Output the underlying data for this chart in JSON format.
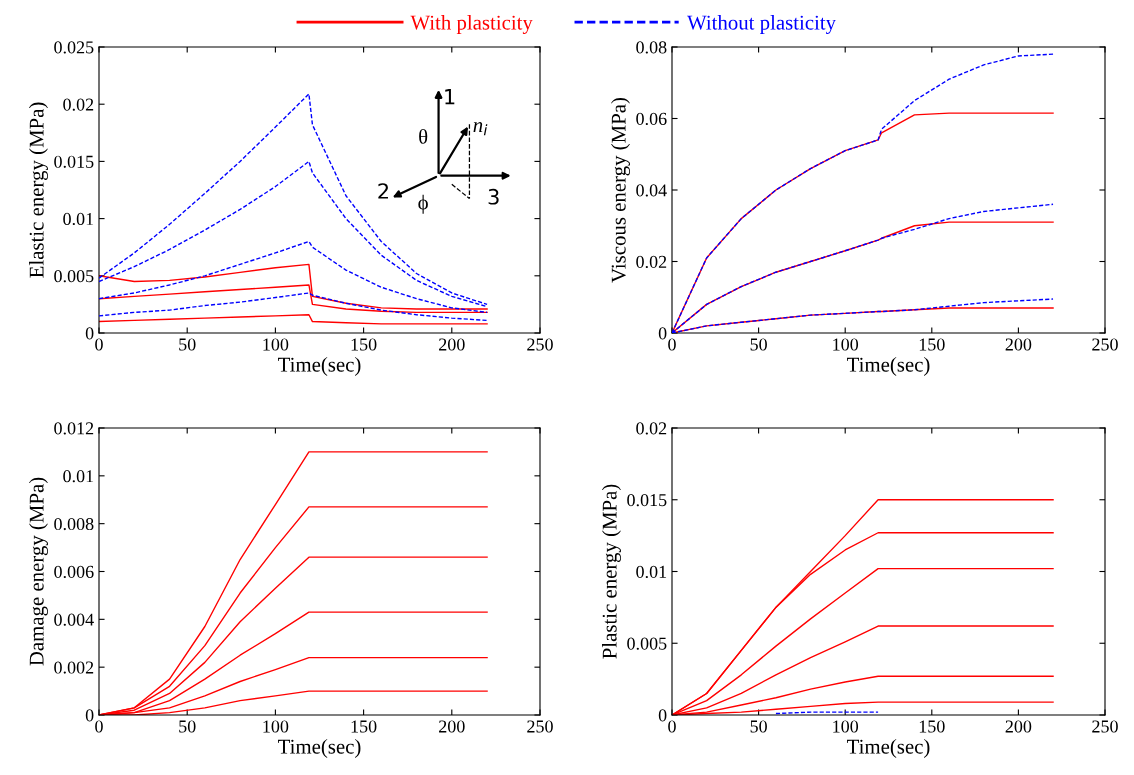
{
  "chart_data": [
    {
      "type": "line",
      "xlabel": "Time(sec)",
      "ylabel": "Elastic energy (MPa)",
      "legend": "top",
      "xlim": [
        0,
        250
      ],
      "xticks": [
        0,
        50,
        100,
        150,
        200,
        250
      ],
      "ylim": [
        0,
        0.025
      ],
      "yticks": [
        0,
        0.005,
        0.01,
        0.015,
        0.02,
        0.025
      ],
      "annotations": [
        "1",
        "2",
        "3",
        "θ",
        "ϕ",
        "n$_{i}$"
      ],
      "x": [
        0,
        20,
        40,
        60,
        80,
        100,
        119,
        121,
        140,
        160,
        180,
        200,
        220
      ],
      "series": [
        {
          "name": "With plasticity",
          "color": "#ff0000",
          "line_style": "solid",
          "values": [
            0.005,
            0.0045,
            0.0046,
            0.0049,
            0.0053,
            0.0057,
            0.006,
            0.0032,
            0.0026,
            0.0022,
            0.0021,
            0.0021,
            0.0021
          ]
        },
        {
          "color": "#ff0000",
          "line_style": "solid",
          "values": [
            0.003,
            0.0032,
            0.0034,
            0.0036,
            0.0038,
            0.004,
            0.0042,
            0.0025,
            0.0021,
            0.0019,
            0.0018,
            0.0018,
            0.0018
          ]
        },
        {
          "color": "#ff0000",
          "line_style": "solid",
          "values": [
            0.001,
            0.0011,
            0.0012,
            0.0013,
            0.0014,
            0.0015,
            0.0016,
            0.001,
            0.0009,
            0.0008,
            0.0008,
            0.0008,
            0.0008
          ]
        },
        {
          "name": "Without plasticity",
          "color": "#0000ff",
          "line_style": "dashed",
          "values": [
            0.0048,
            0.007,
            0.0095,
            0.0122,
            0.015,
            0.018,
            0.0209,
            0.0182,
            0.012,
            0.008,
            0.0052,
            0.0035,
            0.0025
          ]
        },
        {
          "color": "#0000ff",
          "line_style": "dashed",
          "values": [
            0.0045,
            0.0058,
            0.0073,
            0.009,
            0.0108,
            0.0128,
            0.015,
            0.014,
            0.01,
            0.0068,
            0.0046,
            0.0032,
            0.0023
          ]
        },
        {
          "color": "#0000ff",
          "line_style": "dashed",
          "values": [
            0.003,
            0.0035,
            0.0042,
            0.005,
            0.006,
            0.007,
            0.008,
            0.0075,
            0.0055,
            0.004,
            0.003,
            0.0022,
            0.0018
          ]
        },
        {
          "color": "#0000ff",
          "line_style": "dashed",
          "values": [
            0.0015,
            0.0018,
            0.002,
            0.0024,
            0.0027,
            0.0031,
            0.0035,
            0.0033,
            0.0026,
            0.002,
            0.0016,
            0.0013,
            0.0011
          ]
        }
      ]
    },
    {
      "type": "line",
      "xlabel": "Time(sec)",
      "ylabel": "Viscous energy (MPa)",
      "xlim": [
        0,
        250
      ],
      "xticks": [
        0,
        50,
        100,
        150,
        200,
        250
      ],
      "ylim": [
        0,
        0.08
      ],
      "yticks": [
        0,
        0.02,
        0.04,
        0.06,
        0.08
      ],
      "x": [
        0,
        20,
        40,
        60,
        80,
        100,
        119,
        121,
        140,
        160,
        180,
        200,
        220
      ],
      "series": [
        {
          "color": "#0000ff",
          "line_style": "dashed",
          "values": [
            0,
            0.021,
            0.032,
            0.04,
            0.046,
            0.051,
            0.054,
            0.057,
            0.065,
            0.071,
            0.075,
            0.0775,
            0.078
          ]
        },
        {
          "color": "#0000ff",
          "line_style": "dashed",
          "values": [
            0,
            0.008,
            0.013,
            0.017,
            0.02,
            0.023,
            0.026,
            0.0265,
            0.029,
            0.032,
            0.034,
            0.035,
            0.036
          ]
        },
        {
          "color": "#0000ff",
          "line_style": "dashed",
          "values": [
            0,
            0.002,
            0.003,
            0.004,
            0.005,
            0.0055,
            0.006,
            0.006,
            0.0065,
            0.0075,
            0.0085,
            0.009,
            0.0095
          ]
        },
        {
          "color": "#ff0000",
          "line_style": "solid",
          "values": [
            0,
            0.021,
            0.032,
            0.04,
            0.046,
            0.051,
            0.054,
            0.056,
            0.061,
            0.0615,
            0.0615,
            0.0615,
            0.0615
          ]
        },
        {
          "color": "#ff0000",
          "line_style": "solid",
          "values": [
            0,
            0.008,
            0.013,
            0.017,
            0.02,
            0.023,
            0.026,
            0.0265,
            0.03,
            0.031,
            0.031,
            0.031,
            0.031
          ]
        },
        {
          "color": "#ff0000",
          "line_style": "solid",
          "values": [
            0,
            0.002,
            0.003,
            0.004,
            0.005,
            0.0055,
            0.006,
            0.006,
            0.0065,
            0.007,
            0.007,
            0.007,
            0.007
          ]
        }
      ]
    },
    {
      "type": "line",
      "xlabel": "Time(sec)",
      "ylabel": "Damage energy (MPa)",
      "xlim": [
        0,
        250
      ],
      "xticks": [
        0,
        50,
        100,
        150,
        200,
        250
      ],
      "ylim": [
        0,
        0.012
      ],
      "yticks": [
        0,
        0.002,
        0.004,
        0.006,
        0.008,
        0.01,
        0.012
      ],
      "x": [
        0,
        20,
        40,
        60,
        80,
        100,
        119,
        121,
        140,
        160,
        180,
        200,
        220
      ],
      "series": [
        {
          "color": "#ff0000",
          "line_style": "solid",
          "values": [
            0,
            0.0003,
            0.0015,
            0.0037,
            0.0065,
            0.0088,
            0.011,
            0.011,
            0.011,
            0.011,
            0.011,
            0.011,
            0.011
          ]
        },
        {
          "color": "#ff0000",
          "line_style": "solid",
          "values": [
            0,
            0.0003,
            0.0012,
            0.0029,
            0.0051,
            0.007,
            0.0087,
            0.0087,
            0.0087,
            0.0087,
            0.0087,
            0.0087,
            0.0087
          ]
        },
        {
          "color": "#ff0000",
          "line_style": "solid",
          "values": [
            0,
            0.0002,
            0.0009,
            0.0022,
            0.0039,
            0.0053,
            0.0066,
            0.0066,
            0.0066,
            0.0066,
            0.0066,
            0.0066,
            0.0066
          ]
        },
        {
          "color": "#ff0000",
          "line_style": "solid",
          "values": [
            0,
            0.0001,
            0.0006,
            0.0015,
            0.0025,
            0.0034,
            0.0043,
            0.0043,
            0.0043,
            0.0043,
            0.0043,
            0.0043,
            0.0043
          ]
        },
        {
          "color": "#ff0000",
          "line_style": "solid",
          "values": [
            0,
            0.0001,
            0.0003,
            0.0008,
            0.0014,
            0.0019,
            0.0024,
            0.0024,
            0.0024,
            0.0024,
            0.0024,
            0.0024,
            0.0024
          ]
        },
        {
          "color": "#ff0000",
          "line_style": "solid",
          "values": [
            0,
            0,
            0.0001,
            0.0003,
            0.0006,
            0.0008,
            0.001,
            0.001,
            0.001,
            0.001,
            0.001,
            0.001,
            0.001
          ]
        }
      ]
    },
    {
      "type": "line",
      "xlabel": "Time(sec)",
      "ylabel": "Plastic energy (MPa)",
      "xlim": [
        0,
        250
      ],
      "xticks": [
        0,
        50,
        100,
        150,
        200,
        250
      ],
      "ylim": [
        0,
        0.02
      ],
      "yticks": [
        0,
        0.005,
        0.01,
        0.015,
        0.02
      ],
      "x": [
        0,
        20,
        40,
        60,
        80,
        100,
        119,
        121,
        140,
        160,
        180,
        200,
        220
      ],
      "series": [
        {
          "color": "#ff0000",
          "line_style": "solid",
          "values": [
            0,
            0.0015,
            0.0045,
            0.0075,
            0.01,
            0.0125,
            0.015,
            0.015,
            0.015,
            0.015,
            0.015,
            0.015,
            0.015
          ]
        },
        {
          "color": "#ff0000",
          "line_style": "solid",
          "values": [
            0,
            0.0015,
            0.0045,
            0.0075,
            0.0098,
            0.0115,
            0.0127,
            0.0127,
            0.0127,
            0.0127,
            0.0127,
            0.0127,
            0.0127
          ]
        },
        {
          "color": "#ff0000",
          "line_style": "solid",
          "values": [
            0,
            0.001,
            0.0028,
            0.0048,
            0.0067,
            0.0085,
            0.0102,
            0.0102,
            0.0102,
            0.0102,
            0.0102,
            0.0102,
            0.0102
          ]
        },
        {
          "color": "#ff0000",
          "line_style": "solid",
          "values": [
            0,
            0.0005,
            0.0015,
            0.0028,
            0.004,
            0.0051,
            0.0062,
            0.0062,
            0.0062,
            0.0062,
            0.0062,
            0.0062,
            0.0062
          ]
        },
        {
          "color": "#ff0000",
          "line_style": "solid",
          "values": [
            0,
            0.0002,
            0.0007,
            0.0012,
            0.0018,
            0.0023,
            0.0027,
            0.0027,
            0.0027,
            0.0027,
            0.0027,
            0.0027,
            0.0027
          ]
        },
        {
          "color": "#ff0000",
          "line_style": "solid",
          "values": [
            0,
            0.0001,
            0.0002,
            0.0004,
            0.0006,
            0.0008,
            0.0009,
            0.0009,
            0.0009,
            0.0009,
            0.0009,
            0.0009,
            0.0009
          ]
        },
        {
          "color": "#0000ff",
          "line_style": "dashed",
          "values": [
            null,
            null,
            null,
            0.0001,
            0.0002,
            0.0002,
            0.0002,
            null,
            null,
            null,
            null,
            null,
            null
          ]
        }
      ]
    }
  ]
}
